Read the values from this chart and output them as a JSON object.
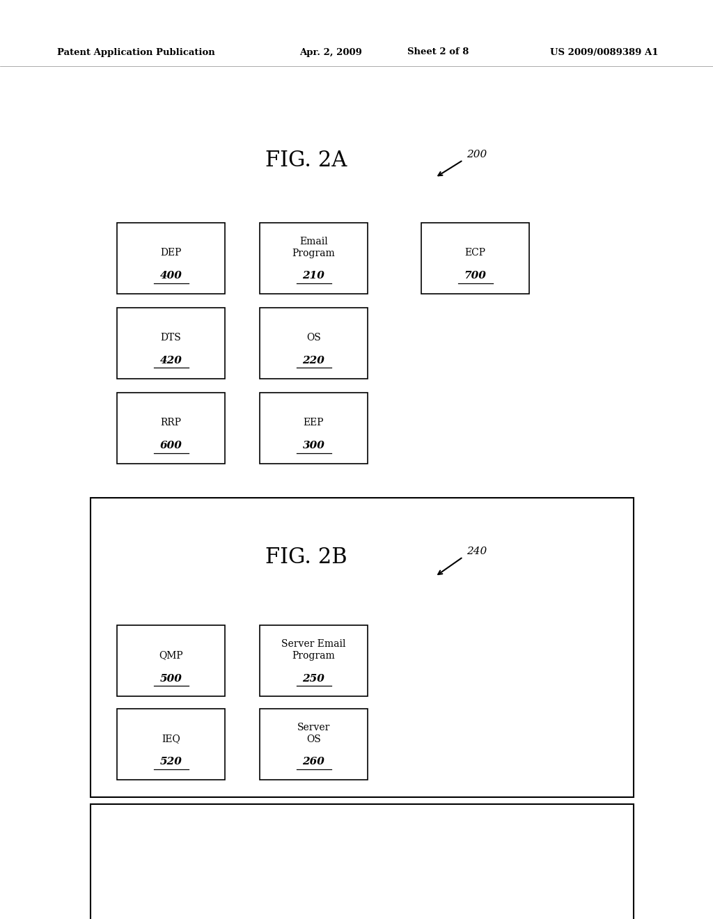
{
  "background_color": "#ffffff",
  "header_text": "Patent Application Publication",
  "header_date": "Apr. 2, 2009",
  "header_sheet": "Sheet 2 of 8",
  "header_patent": "US 2009/0089389 A1",
  "fig2a_title": "FIG. 2A",
  "fig2a_label": "200",
  "fig2b_title": "FIG. 2B",
  "fig2b_label": "240",
  "fig2a_boxes": [
    {
      "label": "DEP",
      "num": "400",
      "col": 0,
      "row": 0
    },
    {
      "label": "Email\nProgram",
      "num": "210",
      "col": 1,
      "row": 0
    },
    {
      "label": "ECP",
      "num": "700",
      "col": 2,
      "row": 0
    },
    {
      "label": "DTS",
      "num": "420",
      "col": 0,
      "row": 1
    },
    {
      "label": "OS",
      "num": "220",
      "col": 1,
      "row": 1
    },
    {
      "label": "RRP",
      "num": "600",
      "col": 0,
      "row": 2
    },
    {
      "label": "EEP",
      "num": "300",
      "col": 1,
      "row": 2
    }
  ],
  "fig2b_boxes": [
    {
      "label": "QMP",
      "num": "500",
      "col": 0,
      "row": 0
    },
    {
      "label": "Server Email\nProgram",
      "num": "250",
      "col": 1,
      "row": 0
    },
    {
      "label": "IEQ",
      "num": "520",
      "col": 0,
      "row": 1
    },
    {
      "label": "Server\nOS",
      "num": "260",
      "col": 1,
      "row": 1
    }
  ],
  "text_color": "#000000",
  "box_edge_color": "#000000",
  "box_face_color": "#ffffff"
}
